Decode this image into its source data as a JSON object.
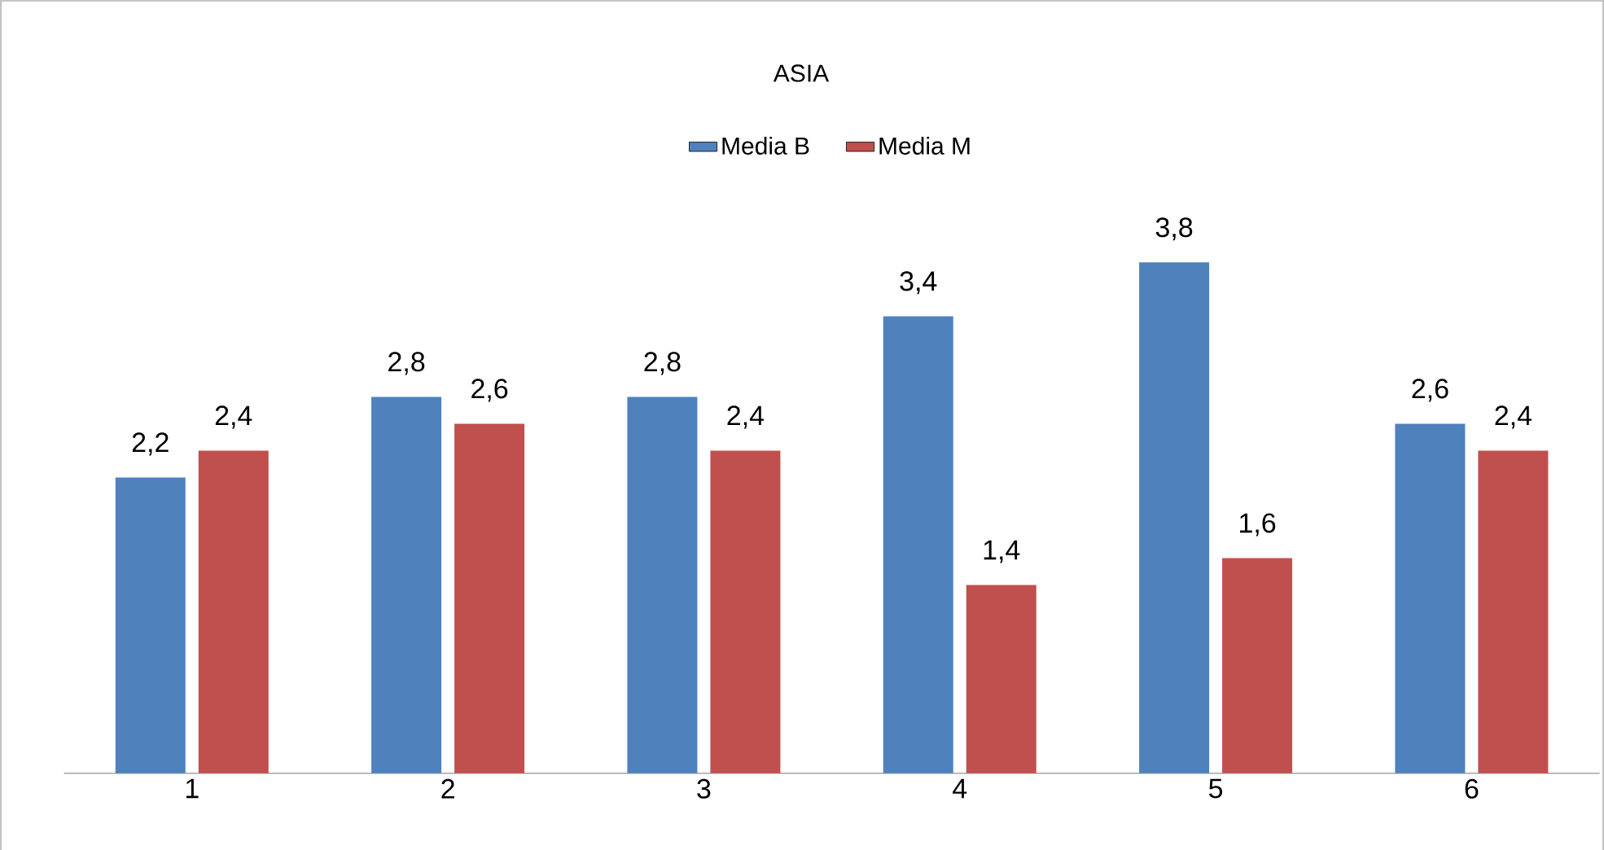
{
  "chart_data": {
    "type": "bar",
    "title": "ASIA",
    "categories": [
      "1",
      "2",
      "3",
      "4",
      "5",
      "6"
    ],
    "series": [
      {
        "name": "Media B",
        "color": "#4f81bd",
        "values": [
          2.2,
          2.8,
          2.8,
          3.4,
          3.8,
          2.6
        ],
        "value_labels": [
          "2,2",
          "2,8",
          "2,8",
          "3,4",
          "3,8",
          "2,6"
        ]
      },
      {
        "name": "Media M",
        "color": "#c0504d",
        "values": [
          2.4,
          2.6,
          2.4,
          1.4,
          1.6,
          2.4
        ],
        "value_labels": [
          "2,4",
          "2,6",
          "2,4",
          "1,4",
          "1,6",
          "2,4"
        ]
      }
    ],
    "legend": "top"
  }
}
